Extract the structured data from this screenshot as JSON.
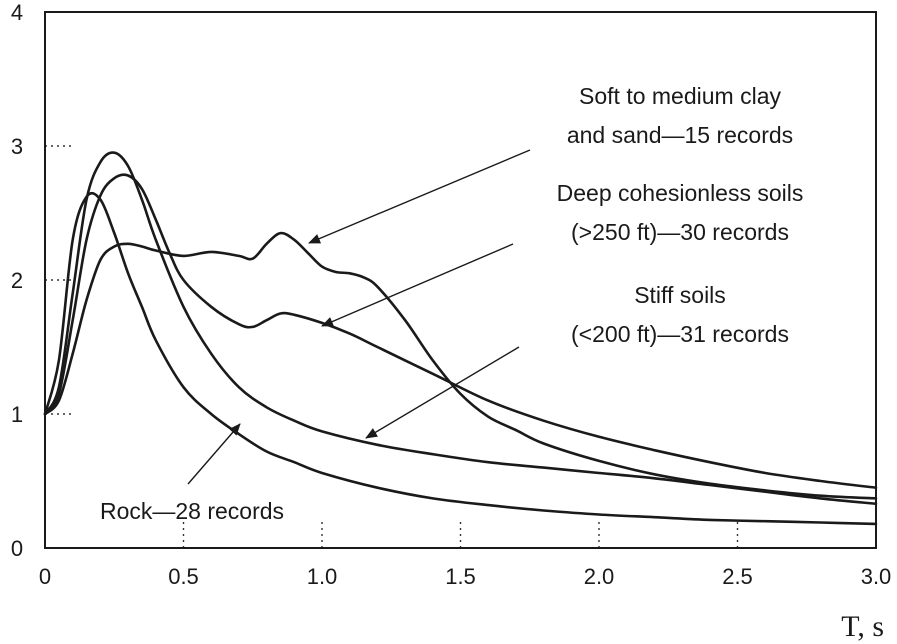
{
  "chart_data": {
    "type": "line",
    "title": "",
    "xlabel": "T, s",
    "ylabel": "",
    "xlim": [
      0,
      3.0
    ],
    "ylim": [
      0,
      4
    ],
    "x_ticks": [
      "0",
      "0.5",
      "1.0",
      "1.5",
      "2.0",
      "2.5",
      "3.0"
    ],
    "x_tick_values": [
      0,
      0.5,
      1.0,
      1.5,
      2.0,
      2.5,
      3.0
    ],
    "y_ticks": [
      "0",
      "1",
      "2",
      "3",
      "4"
    ],
    "y_tick_values": [
      0,
      1,
      2,
      3,
      4
    ],
    "grid": false,
    "series": [
      {
        "name": "Soft to medium clay and sand—15 records",
        "x": [
          0,
          0.05,
          0.1,
          0.15,
          0.2,
          0.25,
          0.3,
          0.35,
          0.4,
          0.5,
          0.6,
          0.7,
          0.75,
          0.8,
          0.85,
          0.9,
          0.95,
          1.0,
          1.05,
          1.1,
          1.15,
          1.2,
          1.3,
          1.4,
          1.5,
          1.6,
          1.7,
          1.8,
          2.0,
          2.2,
          2.4,
          2.6,
          2.8,
          3.0
        ],
        "y": [
          1.0,
          1.1,
          1.45,
          1.85,
          2.15,
          2.25,
          2.27,
          2.25,
          2.22,
          2.18,
          2.21,
          2.18,
          2.16,
          2.27,
          2.35,
          2.3,
          2.2,
          2.1,
          2.06,
          2.05,
          2.02,
          1.95,
          1.7,
          1.4,
          1.15,
          0.98,
          0.88,
          0.78,
          0.65,
          0.55,
          0.48,
          0.43,
          0.39,
          0.37
        ]
      },
      {
        "name": "Deep cohesionless soils (>250 ft)—30 records",
        "x": [
          0,
          0.05,
          0.1,
          0.15,
          0.2,
          0.25,
          0.3,
          0.35,
          0.4,
          0.45,
          0.5,
          0.6,
          0.7,
          0.75,
          0.8,
          0.85,
          0.9,
          1.0,
          1.1,
          1.2,
          1.4,
          1.6,
          1.8,
          2.0,
          2.2,
          2.4,
          2.6,
          2.8,
          3.0
        ],
        "y": [
          1.0,
          1.15,
          1.7,
          2.3,
          2.63,
          2.76,
          2.78,
          2.68,
          2.45,
          2.2,
          2.0,
          1.8,
          1.67,
          1.65,
          1.7,
          1.75,
          1.74,
          1.68,
          1.6,
          1.5,
          1.3,
          1.1,
          0.95,
          0.83,
          0.73,
          0.64,
          0.56,
          0.5,
          0.45
        ]
      },
      {
        "name": "Stiff soils (<200 ft)—31 records",
        "x": [
          0,
          0.05,
          0.1,
          0.15,
          0.2,
          0.25,
          0.3,
          0.35,
          0.4,
          0.5,
          0.6,
          0.7,
          0.8,
          0.9,
          1.0,
          1.2,
          1.4,
          1.6,
          1.8,
          2.0,
          2.2,
          2.4,
          2.6,
          2.8,
          3.0
        ],
        "y": [
          1.0,
          1.2,
          1.9,
          2.6,
          2.88,
          2.95,
          2.85,
          2.6,
          2.3,
          1.8,
          1.45,
          1.2,
          1.05,
          0.95,
          0.87,
          0.77,
          0.7,
          0.64,
          0.6,
          0.56,
          0.52,
          0.47,
          0.42,
          0.37,
          0.33
        ]
      },
      {
        "name": "Rock—28 records",
        "x": [
          0,
          0.05,
          0.1,
          0.15,
          0.2,
          0.25,
          0.3,
          0.35,
          0.4,
          0.5,
          0.6,
          0.7,
          0.8,
          0.9,
          1.0,
          1.2,
          1.4,
          1.6,
          1.8,
          2.0,
          2.2,
          2.4,
          2.6,
          2.8,
          3.0
        ],
        "y": [
          1.0,
          1.4,
          2.3,
          2.62,
          2.6,
          2.35,
          2.05,
          1.8,
          1.55,
          1.2,
          1.0,
          0.85,
          0.72,
          0.64,
          0.56,
          0.45,
          0.37,
          0.32,
          0.28,
          0.25,
          0.23,
          0.21,
          0.2,
          0.19,
          0.18
        ]
      }
    ],
    "annotations": [
      {
        "id": "soft",
        "lines": [
          "Soft to medium clay",
          "and sand—15 records"
        ]
      },
      {
        "id": "deep",
        "lines": [
          "Deep cohesionless soils",
          "(>250 ft)—30 records"
        ]
      },
      {
        "id": "stiff",
        "lines": [
          "Stiff soils",
          "(<200 ft)—31 records"
        ]
      },
      {
        "id": "rock",
        "lines": [
          "Rock—28 records"
        ]
      }
    ]
  }
}
